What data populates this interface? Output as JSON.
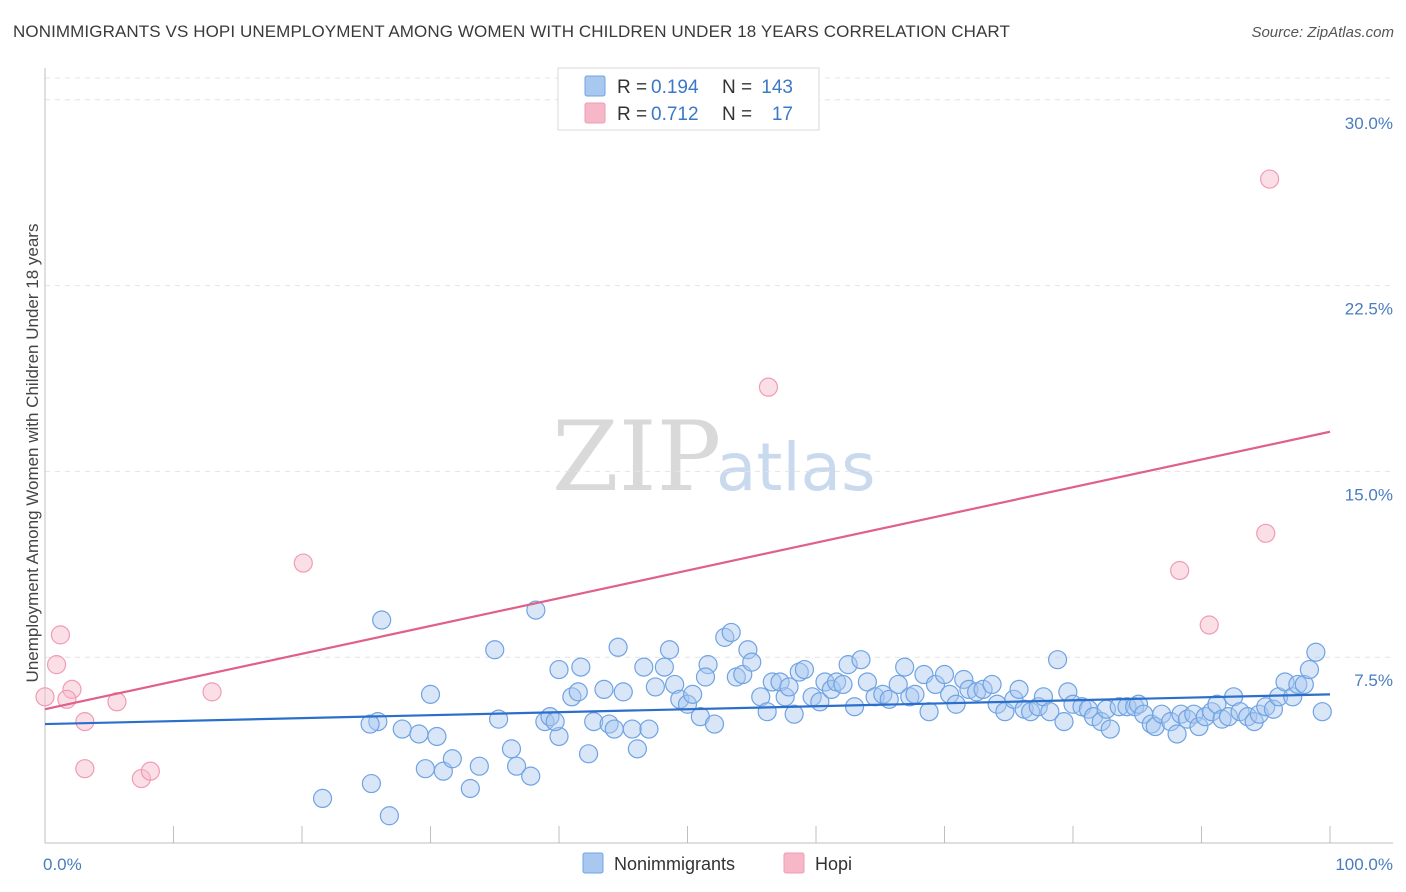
{
  "title": "NONIMMIGRANTS VS HOPI UNEMPLOYMENT AMONG WOMEN WITH CHILDREN UNDER 18 YEARS CORRELATION CHART",
  "source": "Source: ZipAtlas.com",
  "watermark": {
    "part1": "ZIP",
    "part2": "atlas"
  },
  "legend_top": [
    {
      "r_label": "R =",
      "r_value": "0.194",
      "n_label": "N =",
      "n_value": "143",
      "color": "#a9c8ef"
    },
    {
      "r_label": "R =",
      "r_value": "0.712",
      "n_label": "N =",
      "n_value": "17",
      "color": "#f6b8c9"
    }
  ],
  "legend_bottom": [
    {
      "label": "Nonimmigrants",
      "color": "#a9c8ef"
    },
    {
      "label": "Hopi",
      "color": "#f6b8c9"
    }
  ],
  "chart_data": {
    "type": "scatter",
    "xlabel": "",
    "ylabel": "Unemployment Among Women with Children Under 18 years",
    "xlim": [
      0,
      100
    ],
    "ylim": [
      0,
      31
    ],
    "x_tick_labels": [
      "0.0%",
      "100.0%"
    ],
    "y_ticks": [
      7.5,
      15.0,
      22.5,
      30.0
    ],
    "y_tick_labels": [
      "7.5%",
      "15.0%",
      "22.5%",
      "30.0%"
    ],
    "grid": true,
    "legend_position": "top-center",
    "series": [
      {
        "name": "Nonimmigrants",
        "color": "#6fa3e3",
        "trendline": {
          "x": [
            0,
            100
          ],
          "y": [
            4.8,
            6.0
          ],
          "color": "#2c6fcb"
        },
        "points": [
          [
            21.6,
            1.8
          ],
          [
            25.4,
            2.4
          ],
          [
            26.8,
            1.1
          ],
          [
            25.9,
            4.9
          ],
          [
            25.3,
            4.8
          ],
          [
            26.2,
            9.0
          ],
          [
            27.8,
            4.6
          ],
          [
            29.6,
            3.0
          ],
          [
            29.1,
            4.4
          ],
          [
            30.0,
            6.0
          ],
          [
            30.5,
            4.3
          ],
          [
            31.0,
            2.9
          ],
          [
            31.7,
            3.4
          ],
          [
            33.1,
            2.2
          ],
          [
            33.8,
            3.1
          ],
          [
            35.0,
            7.8
          ],
          [
            35.3,
            5.0
          ],
          [
            36.3,
            3.8
          ],
          [
            36.7,
            3.1
          ],
          [
            37.8,
            2.7
          ],
          [
            38.2,
            9.4
          ],
          [
            38.9,
            4.9
          ],
          [
            39.3,
            5.1
          ],
          [
            40.0,
            4.3
          ],
          [
            39.7,
            4.9
          ],
          [
            40.0,
            7.0
          ],
          [
            41.0,
            5.9
          ],
          [
            41.7,
            7.1
          ],
          [
            41.5,
            6.1
          ],
          [
            42.3,
            3.6
          ],
          [
            42.7,
            4.9
          ],
          [
            43.5,
            6.2
          ],
          [
            43.9,
            4.8
          ],
          [
            44.3,
            4.6
          ],
          [
            45.0,
            6.1
          ],
          [
            44.6,
            7.9
          ],
          [
            45.7,
            4.6
          ],
          [
            46.1,
            3.8
          ],
          [
            47.0,
            4.6
          ],
          [
            46.6,
            7.1
          ],
          [
            47.5,
            6.3
          ],
          [
            48.2,
            7.1
          ],
          [
            48.6,
            7.8
          ],
          [
            49.0,
            6.4
          ],
          [
            49.4,
            5.8
          ],
          [
            50.0,
            5.6
          ],
          [
            50.4,
            6.0
          ],
          [
            51.0,
            5.1
          ],
          [
            51.6,
            7.2
          ],
          [
            51.4,
            6.7
          ],
          [
            52.1,
            4.8
          ],
          [
            52.9,
            8.3
          ],
          [
            53.4,
            8.5
          ],
          [
            53.8,
            6.7
          ],
          [
            54.3,
            6.8
          ],
          [
            54.7,
            7.8
          ],
          [
            55.0,
            7.3
          ],
          [
            55.7,
            5.9
          ],
          [
            56.2,
            5.3
          ],
          [
            56.6,
            6.5
          ],
          [
            57.2,
            6.5
          ],
          [
            57.6,
            5.9
          ],
          [
            57.9,
            6.3
          ],
          [
            58.3,
            5.2
          ],
          [
            58.7,
            6.9
          ],
          [
            59.1,
            7.0
          ],
          [
            59.7,
            5.9
          ],
          [
            60.3,
            5.7
          ],
          [
            60.7,
            6.5
          ],
          [
            61.2,
            6.2
          ],
          [
            61.6,
            6.5
          ],
          [
            62.1,
            6.4
          ],
          [
            62.5,
            7.2
          ],
          [
            63.0,
            5.5
          ],
          [
            63.5,
            7.4
          ],
          [
            64.0,
            6.5
          ],
          [
            64.6,
            5.9
          ],
          [
            65.2,
            6.0
          ],
          [
            65.7,
            5.8
          ],
          [
            66.4,
            6.4
          ],
          [
            66.9,
            7.1
          ],
          [
            67.3,
            5.9
          ],
          [
            67.7,
            6.0
          ],
          [
            68.4,
            6.8
          ],
          [
            68.8,
            5.3
          ],
          [
            69.3,
            6.4
          ],
          [
            70.0,
            6.8
          ],
          [
            70.4,
            6.0
          ],
          [
            70.9,
            5.6
          ],
          [
            71.5,
            6.6
          ],
          [
            71.9,
            6.2
          ],
          [
            72.5,
            6.1
          ],
          [
            73.0,
            6.2
          ],
          [
            73.7,
            6.4
          ],
          [
            74.1,
            5.6
          ],
          [
            74.7,
            5.3
          ],
          [
            75.4,
            5.8
          ],
          [
            75.8,
            6.2
          ],
          [
            76.2,
            5.4
          ],
          [
            76.7,
            5.3
          ],
          [
            77.3,
            5.5
          ],
          [
            77.7,
            5.9
          ],
          [
            78.2,
            5.3
          ],
          [
            78.8,
            7.4
          ],
          [
            79.3,
            4.9
          ],
          [
            79.6,
            6.1
          ],
          [
            80.0,
            5.6
          ],
          [
            80.7,
            5.5
          ],
          [
            81.2,
            5.4
          ],
          [
            81.6,
            5.1
          ],
          [
            82.2,
            4.9
          ],
          [
            82.6,
            5.4
          ],
          [
            82.9,
            4.6
          ],
          [
            83.6,
            5.5
          ],
          [
            84.2,
            5.5
          ],
          [
            84.8,
            5.5
          ],
          [
            85.1,
            5.6
          ],
          [
            85.5,
            5.2
          ],
          [
            86.1,
            4.8
          ],
          [
            86.4,
            4.7
          ],
          [
            86.9,
            5.2
          ],
          [
            87.6,
            4.9
          ],
          [
            88.1,
            4.4
          ],
          [
            88.4,
            5.2
          ],
          [
            88.9,
            5.0
          ],
          [
            89.4,
            5.2
          ],
          [
            89.8,
            4.7
          ],
          [
            90.3,
            5.1
          ],
          [
            90.8,
            5.3
          ],
          [
            91.2,
            5.6
          ],
          [
            91.6,
            5.0
          ],
          [
            92.1,
            5.1
          ],
          [
            92.5,
            5.9
          ],
          [
            93.0,
            5.3
          ],
          [
            93.6,
            5.1
          ],
          [
            94.1,
            4.9
          ],
          [
            94.5,
            5.2
          ],
          [
            95.0,
            5.5
          ],
          [
            95.6,
            5.4
          ],
          [
            96.0,
            5.9
          ],
          [
            96.5,
            6.5
          ],
          [
            97.1,
            5.9
          ],
          [
            97.5,
            6.4
          ],
          [
            98.0,
            6.4
          ],
          [
            98.4,
            7.0
          ],
          [
            98.9,
            7.7
          ],
          [
            99.4,
            5.3
          ]
        ]
      },
      {
        "name": "Hopi",
        "color": "#f19bb4",
        "trendline": {
          "x": [
            0,
            100
          ],
          "y": [
            5.4,
            16.6
          ],
          "color": "#e0608a"
        },
        "points": [
          [
            0.0,
            5.9
          ],
          [
            0.9,
            7.2
          ],
          [
            1.2,
            8.4
          ],
          [
            2.1,
            6.2
          ],
          [
            1.7,
            5.8
          ],
          [
            3.1,
            3.0
          ],
          [
            3.1,
            4.9
          ],
          [
            5.6,
            5.7
          ],
          [
            7.5,
            2.6
          ],
          [
            8.2,
            2.9
          ],
          [
            13.0,
            6.1
          ],
          [
            20.1,
            11.3
          ],
          [
            56.3,
            18.4
          ],
          [
            88.3,
            11.0
          ],
          [
            90.6,
            8.8
          ],
          [
            95.0,
            12.5
          ],
          [
            95.3,
            26.8
          ]
        ]
      }
    ]
  }
}
